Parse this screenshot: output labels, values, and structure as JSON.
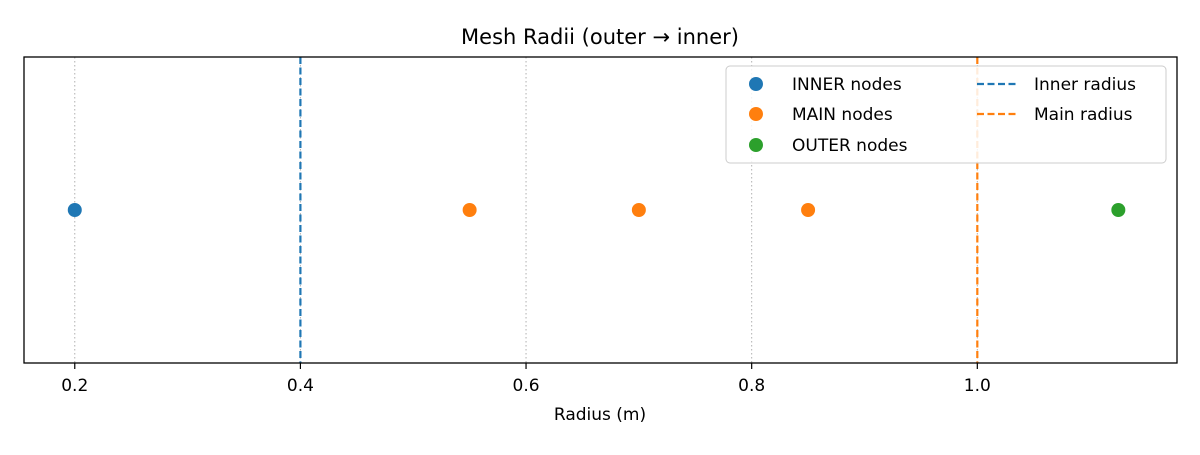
{
  "chart_data": {
    "type": "scatter",
    "title": "Mesh Radii (outer → inner)",
    "xlabel": "Radius (m)",
    "ylabel": "",
    "xlim": [
      0.155,
      1.177
    ],
    "xticks": [
      0.2,
      0.4,
      0.6,
      0.8,
      1.0
    ],
    "xtick_labels": [
      "0.2",
      "0.4",
      "0.6",
      "0.8",
      "1.0"
    ],
    "grid": "x-dotted",
    "legend_position": "top-right",
    "series": [
      {
        "name": "INNER nodes",
        "color": "#1f77b4",
        "x": [
          0.2
        ],
        "y": [
          0
        ]
      },
      {
        "name": "MAIN nodes",
        "color": "#ff7f0e",
        "x": [
          0.55,
          0.7,
          0.85
        ],
        "y": [
          0,
          0,
          0
        ]
      },
      {
        "name": "OUTER nodes",
        "color": "#2ca02c",
        "x": [
          1.125
        ],
        "y": [
          0
        ]
      }
    ],
    "reference_lines": [
      {
        "name": "Inner radius",
        "x": 0.4,
        "color": "#1f77b4",
        "style": "dashed"
      },
      {
        "name": "Main radius",
        "x": 1.0,
        "color": "#ff7f0e",
        "style": "dashed"
      }
    ]
  }
}
